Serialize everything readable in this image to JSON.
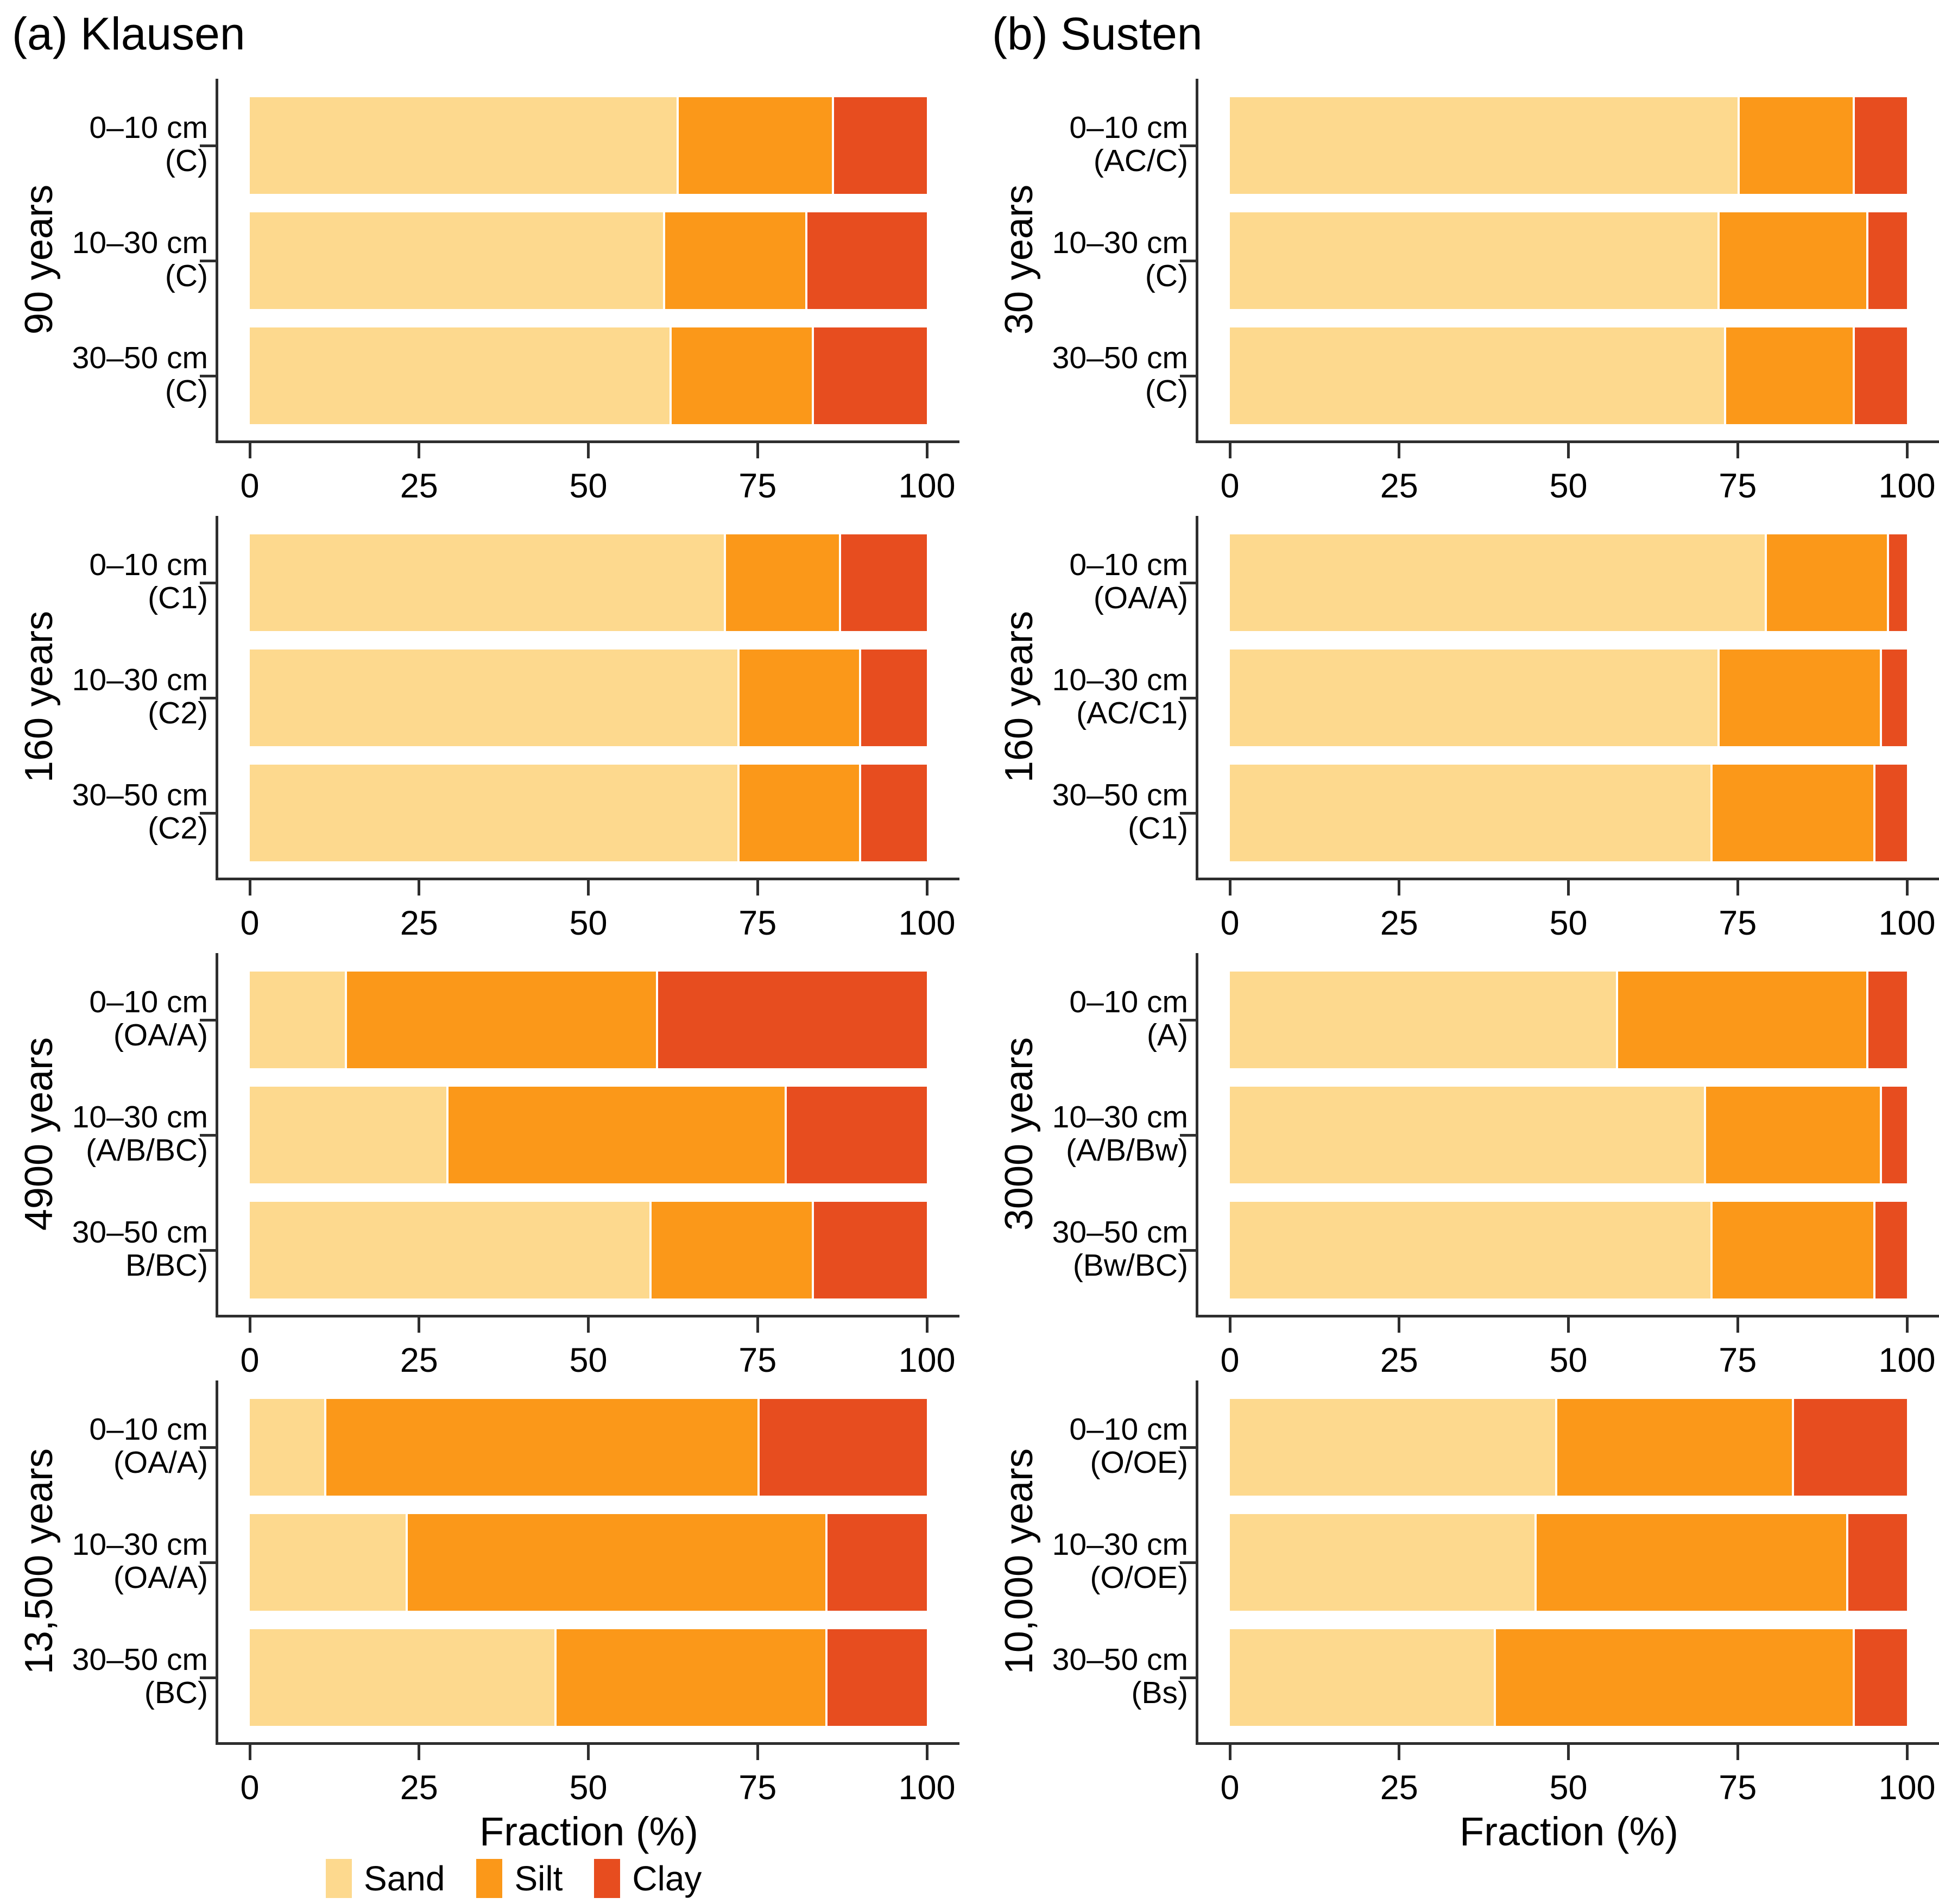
{
  "figure": {
    "titles": {
      "a": "(a) Klausen",
      "b": "(b) Susten"
    },
    "xlabel": "Fraction (%)",
    "legend": [
      {
        "label": "Sand",
        "color": "#FDD98E"
      },
      {
        "label": "Silt",
        "color": "#FB9819"
      },
      {
        "label": "Clay",
        "color": "#E74D1F"
      }
    ],
    "colors": {
      "Sand": "#FDD98E",
      "Silt": "#FB9819",
      "Clay": "#E74D1F",
      "axis": "#2e2e2e"
    }
  },
  "chart_data": [
    {
      "type": "bar",
      "orientation": "horizontal",
      "stacked": true,
      "column": "a",
      "site": "Klausen",
      "group_label": "90 years",
      "categories": [
        {
          "depth": "0–10 cm",
          "horizon": "(C)"
        },
        {
          "depth": "10–30 cm",
          "horizon": "(C)"
        },
        {
          "depth": "30–50 cm",
          "horizon": "(C)"
        }
      ],
      "series": [
        {
          "name": "Sand",
          "values": [
            63,
            61,
            62
          ]
        },
        {
          "name": "Silt",
          "values": [
            23,
            21,
            21
          ]
        },
        {
          "name": "Clay",
          "values": [
            14,
            18,
            17
          ]
        }
      ],
      "xlim": [
        0,
        100
      ],
      "x_ticks": [
        0,
        25,
        50,
        75,
        100
      ],
      "xlabel": ""
    },
    {
      "type": "bar",
      "orientation": "horizontal",
      "stacked": true,
      "column": "a",
      "site": "Klausen",
      "group_label": "160 years",
      "categories": [
        {
          "depth": "0–10 cm",
          "horizon": "(C1)"
        },
        {
          "depth": "10–30 cm",
          "horizon": "(C2)"
        },
        {
          "depth": "30–50 cm",
          "horizon": "(C2)"
        }
      ],
      "series": [
        {
          "name": "Sand",
          "values": [
            70,
            72,
            72
          ]
        },
        {
          "name": "Silt",
          "values": [
            17,
            18,
            18
          ]
        },
        {
          "name": "Clay",
          "values": [
            13,
            10,
            10
          ]
        }
      ],
      "xlim": [
        0,
        100
      ],
      "x_ticks": [
        0,
        25,
        50,
        75,
        100
      ],
      "xlabel": ""
    },
    {
      "type": "bar",
      "orientation": "horizontal",
      "stacked": true,
      "column": "a",
      "site": "Klausen",
      "group_label": "4900 years",
      "categories": [
        {
          "depth": "0–10 cm",
          "horizon": "(OA/A)"
        },
        {
          "depth": "10–30 cm",
          "horizon": "(A/B/BC)"
        },
        {
          "depth": "30–50 cm",
          "horizon": "B/BC)"
        }
      ],
      "series": [
        {
          "name": "Sand",
          "values": [
            14,
            29,
            59
          ]
        },
        {
          "name": "Silt",
          "values": [
            46,
            50,
            24
          ]
        },
        {
          "name": "Clay",
          "values": [
            40,
            21,
            17
          ]
        }
      ],
      "xlim": [
        0,
        100
      ],
      "x_ticks": [
        0,
        25,
        50,
        75,
        100
      ],
      "xlabel": ""
    },
    {
      "type": "bar",
      "orientation": "horizontal",
      "stacked": true,
      "column": "a",
      "site": "Klausen",
      "group_label": "13,500 years",
      "categories": [
        {
          "depth": "0–10 cm",
          "horizon": "(OA/A)"
        },
        {
          "depth": "10–30 cm",
          "horizon": "(OA/A)"
        },
        {
          "depth": "30–50 cm",
          "horizon": "(BC)"
        }
      ],
      "series": [
        {
          "name": "Sand",
          "values": [
            11,
            23,
            45
          ]
        },
        {
          "name": "Silt",
          "values": [
            64,
            62,
            40
          ]
        },
        {
          "name": "Clay",
          "values": [
            25,
            15,
            15
          ]
        }
      ],
      "xlim": [
        0,
        100
      ],
      "x_ticks": [
        0,
        25,
        50,
        75,
        100
      ],
      "xlabel": "Fraction (%)"
    },
    {
      "type": "bar",
      "orientation": "horizontal",
      "stacked": true,
      "column": "b",
      "site": "Susten",
      "group_label": "30 years",
      "categories": [
        {
          "depth": "0–10 cm",
          "horizon": "(AC/C)"
        },
        {
          "depth": "10–30 cm",
          "horizon": "(C)"
        },
        {
          "depth": "30–50 cm",
          "horizon": "(C)"
        }
      ],
      "series": [
        {
          "name": "Sand",
          "values": [
            75,
            72,
            73
          ]
        },
        {
          "name": "Silt",
          "values": [
            17,
            22,
            19
          ]
        },
        {
          "name": "Clay",
          "values": [
            8,
            6,
            8
          ]
        }
      ],
      "xlim": [
        0,
        100
      ],
      "x_ticks": [
        0,
        25,
        50,
        75,
        100
      ],
      "xlabel": ""
    },
    {
      "type": "bar",
      "orientation": "horizontal",
      "stacked": true,
      "column": "b",
      "site": "Susten",
      "group_label": "160 years",
      "categories": [
        {
          "depth": "0–10 cm",
          "horizon": "(OA/A)"
        },
        {
          "depth": "10–30 cm",
          "horizon": "(AC/C1)"
        },
        {
          "depth": "30–50 cm",
          "horizon": "(C1)"
        }
      ],
      "series": [
        {
          "name": "Sand",
          "values": [
            79,
            72,
            71
          ]
        },
        {
          "name": "Silt",
          "values": [
            18,
            24,
            24
          ]
        },
        {
          "name": "Clay",
          "values": [
            3,
            4,
            5
          ]
        }
      ],
      "xlim": [
        0,
        100
      ],
      "x_ticks": [
        0,
        25,
        50,
        75,
        100
      ],
      "xlabel": ""
    },
    {
      "type": "bar",
      "orientation": "horizontal",
      "stacked": true,
      "column": "b",
      "site": "Susten",
      "group_label": "3000 years",
      "categories": [
        {
          "depth": "0–10 cm",
          "horizon": "(A)"
        },
        {
          "depth": "10–30 cm",
          "horizon": "(A/B/Bw)"
        },
        {
          "depth": "30–50 cm",
          "horizon": "(Bw/BC)"
        }
      ],
      "series": [
        {
          "name": "Sand",
          "values": [
            57,
            70,
            71
          ]
        },
        {
          "name": "Silt",
          "values": [
            37,
            26,
            24
          ]
        },
        {
          "name": "Clay",
          "values": [
            6,
            4,
            5
          ]
        }
      ],
      "xlim": [
        0,
        100
      ],
      "x_ticks": [
        0,
        25,
        50,
        75,
        100
      ],
      "xlabel": ""
    },
    {
      "type": "bar",
      "orientation": "horizontal",
      "stacked": true,
      "column": "b",
      "site": "Susten",
      "group_label": "10,000 years",
      "categories": [
        {
          "depth": "0–10 cm",
          "horizon": "(O/OE)"
        },
        {
          "depth": "10–30 cm",
          "horizon": "(O/OE)"
        },
        {
          "depth": "30–50 cm",
          "horizon": "(Bs)"
        }
      ],
      "series": [
        {
          "name": "Sand",
          "values": [
            48,
            45,
            39
          ]
        },
        {
          "name": "Silt",
          "values": [
            35,
            46,
            53
          ]
        },
        {
          "name": "Clay",
          "values": [
            17,
            9,
            8
          ]
        }
      ],
      "xlim": [
        0,
        100
      ],
      "x_ticks": [
        0,
        25,
        50,
        75,
        100
      ],
      "xlabel": "Fraction (%)"
    }
  ]
}
